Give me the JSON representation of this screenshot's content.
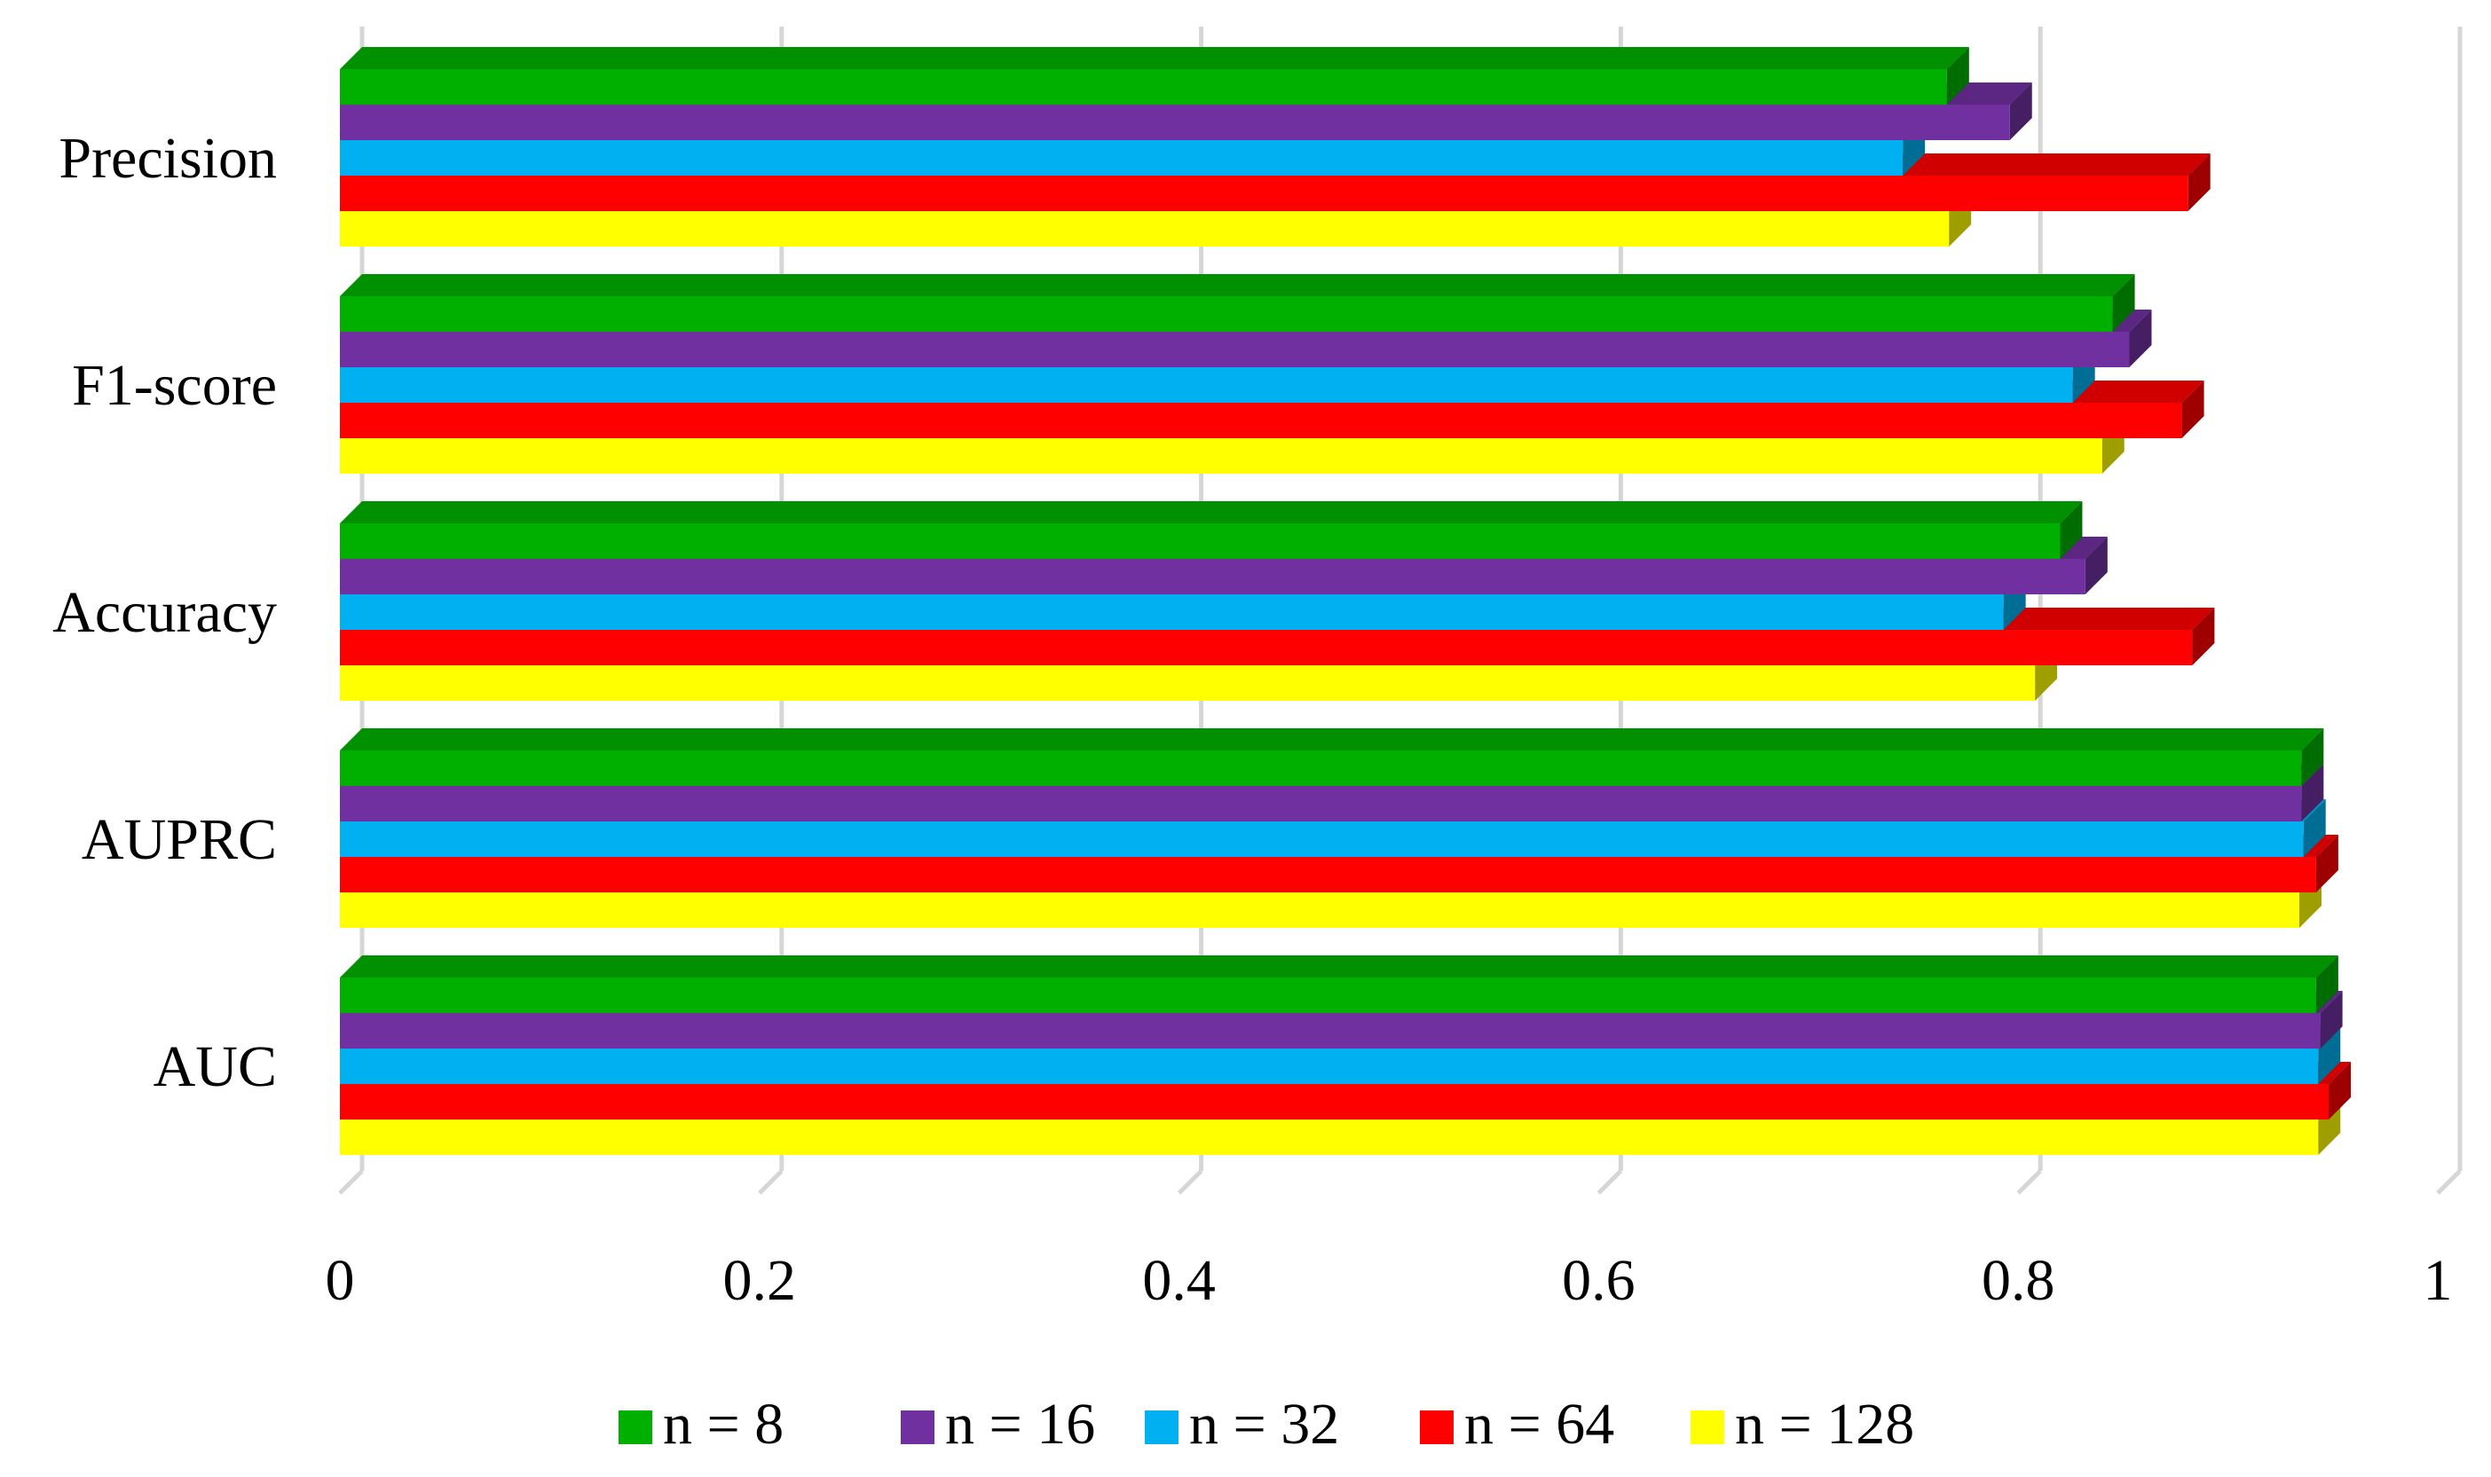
{
  "chart_data": {
    "type": "bar",
    "orientation": "horizontal",
    "categories": [
      "Precision",
      "F1-score",
      "Accuracy",
      "AUPRC",
      "AUC"
    ],
    "series": [
      {
        "name": "n = 8",
        "color": "#00b000",
        "values": [
          0.766,
          0.845,
          0.82,
          0.935,
          0.942
        ]
      },
      {
        "name": "n = 16",
        "color": "#7030a0",
        "values": [
          0.796,
          0.853,
          0.832,
          0.935,
          0.944
        ]
      },
      {
        "name": "n = 32",
        "color": "#00b0f0",
        "values": [
          0.745,
          0.826,
          0.793,
          0.936,
          0.943
        ]
      },
      {
        "name": "n = 64",
        "color": "#ff0000",
        "values": [
          0.881,
          0.878,
          0.883,
          0.942,
          0.948
        ]
      },
      {
        "name": "n = 128",
        "color": "#ffff00",
        "values": [
          0.767,
          0.84,
          0.808,
          0.934,
          0.943
        ]
      }
    ],
    "xlim": [
      0,
      1
    ],
    "xticks": [
      "0",
      "0.2",
      "0.4",
      "0.6",
      "0.8",
      "1"
    ],
    "grid": true,
    "legend": "bottom"
  }
}
